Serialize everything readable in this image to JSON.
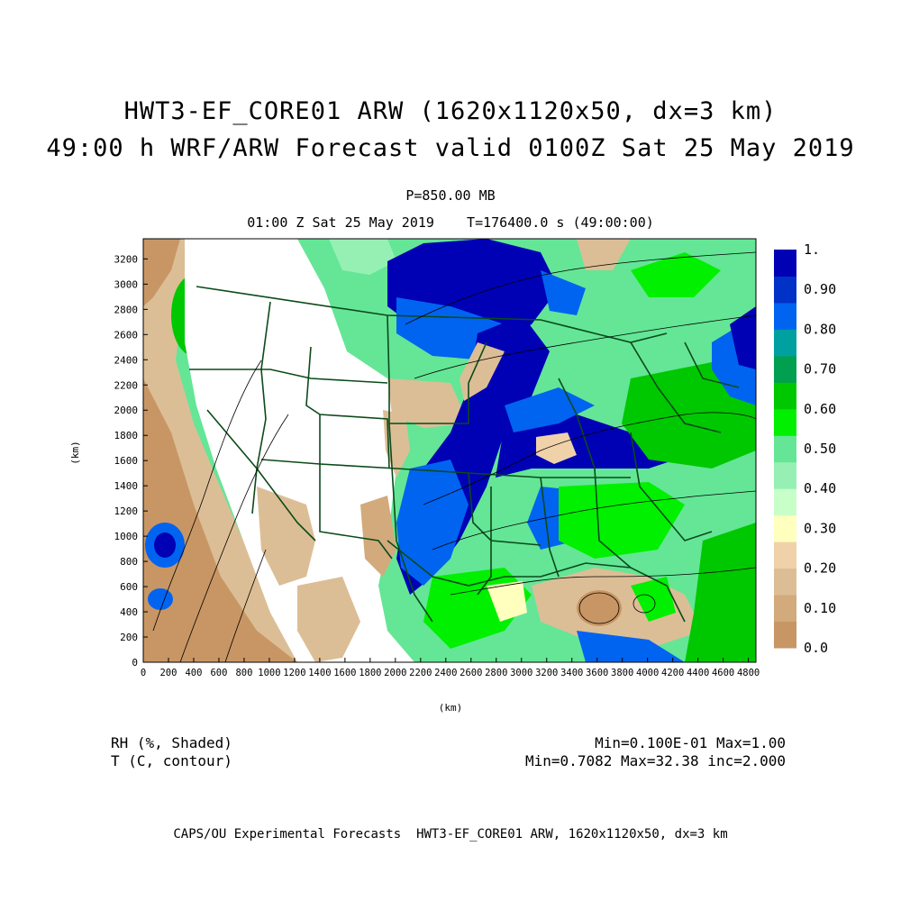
{
  "header": {
    "title_line1": "HWT3-EF_CORE01 ARW (1620x1120x50, dx=3 km)",
    "title_line2": "49:00 h WRF/ARW Forecast valid 0100Z Sat 25 May 2019",
    "level": "P=850.00 MB",
    "valid_line": "01:00 Z Sat 25 May 2019    T=176400.0 s (49:00:00)"
  },
  "axes": {
    "xlabel": "(km)",
    "ylabel": "(km)",
    "x_ticks": [
      "0",
      "200",
      "400",
      "600",
      "800",
      "1000",
      "1200",
      "1400",
      "1600",
      "1800",
      "2000",
      "2200",
      "2400",
      "2600",
      "2800",
      "3000",
      "3200",
      "3400",
      "3600",
      "3800",
      "4000",
      "4200",
      "4400",
      "4600",
      "4800"
    ],
    "y_ticks": [
      "0",
      "200",
      "400",
      "600",
      "800",
      "1000",
      "1200",
      "1400",
      "1600",
      "1800",
      "2000",
      "2200",
      "2400",
      "2600",
      "2800",
      "3000",
      "3200"
    ],
    "x_range": [
      0,
      4860
    ],
    "y_range": [
      0,
      3360
    ]
  },
  "colorbar": {
    "labels": [
      "1.",
      "0.90",
      "0.80",
      "0.70",
      "0.60",
      "0.50",
      "0.40",
      "0.30",
      "0.20",
      "0.10",
      "0.0"
    ],
    "colors": [
      "#c89664",
      "#d2aa7c",
      "#dcbe96",
      "#f0d2aa",
      "#ffffbe",
      "#c8ffc8",
      "#96f0b4",
      "#64e696",
      "#00f000",
      "#00c800",
      "#00a050",
      "#00a0a0",
      "#0064f0",
      "#0032c8",
      "#0000b4"
    ]
  },
  "legend": {
    "shade_label": "RH (%, Shaded)",
    "contour_label": "T (C, contour)",
    "shade_stats": "Min=0.100E-01 Max=1.00",
    "contour_stats": "Min=0.7082 Max=32.38 inc=2.000"
  },
  "footer": "CAPS/OU Experimental Forecasts  HWT3-EF_CORE01 ARW, 1620x1120x50, dx=3 km",
  "fields": {
    "shade_colors": {
      "dry_tan": "#c89664",
      "light_tan": "#dcbe96",
      "pale_yellow": "#ffffbe",
      "light_green": "#96f0b4",
      "green": "#00f000",
      "dark_green": "#00a050",
      "blue": "#0064f0",
      "dark_blue": "#0000b4",
      "boundary": "#0b4a1a"
    }
  }
}
